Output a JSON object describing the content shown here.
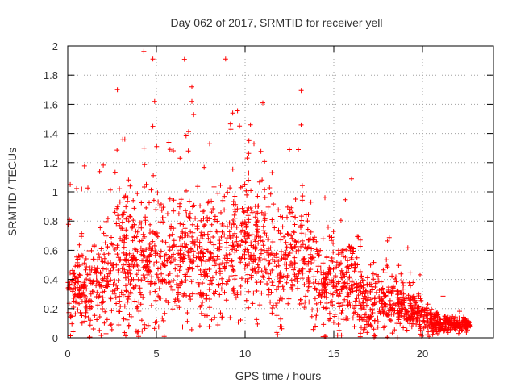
{
  "chart_data": {
    "type": "scatter",
    "title": "Day 062 of 2017, SRMTID for receiver yell",
    "xlabel": "GPS time / hours",
    "ylabel": "SRMTID / TECUs",
    "xlim": [
      0,
      24
    ],
    "ylim": [
      0,
      2
    ],
    "x_ticks": [
      0,
      5,
      10,
      15,
      20
    ],
    "x_tick_labels": [
      "0",
      "5",
      "10",
      "15",
      "20"
    ],
    "y_ticks": [
      0,
      0.2,
      0.4,
      0.6,
      0.8,
      1,
      1.2,
      1.4,
      1.6,
      1.8,
      2
    ],
    "y_tick_labels": [
      "0",
      "0.2",
      "0.4",
      "0.6",
      "0.8",
      "1",
      "1.2",
      "1.4",
      "1.6",
      "1.8",
      "2"
    ],
    "grid": true,
    "marker": "+",
    "color": "#ff0000",
    "outliers": [
      {
        "x": 2.8,
        "y": 1.7
      },
      {
        "x": 4.8,
        "y": 1.91
      },
      {
        "x": 4.9,
        "y": 1.62
      },
      {
        "x": 4.8,
        "y": 1.45
      },
      {
        "x": 7.0,
        "y": 1.72
      },
      {
        "x": 7.0,
        "y": 1.62
      },
      {
        "x": 7.1,
        "y": 1.53
      },
      {
        "x": 8.9,
        "y": 1.91
      },
      {
        "x": 11.0,
        "y": 1.61
      },
      {
        "x": 9.3,
        "y": 1.54
      },
      {
        "x": 10.3,
        "y": 1.46
      },
      {
        "x": 9.2,
        "y": 1.43
      },
      {
        "x": 3.1,
        "y": 1.36
      },
      {
        "x": 5.7,
        "y": 1.34
      },
      {
        "x": 12.5,
        "y": 1.29
      },
      {
        "x": 13.0,
        "y": 1.29
      },
      {
        "x": 8.0,
        "y": 1.33
      },
      {
        "x": 10.5,
        "y": 1.33
      },
      {
        "x": 1.8,
        "y": 1.14
      },
      {
        "x": 16.0,
        "y": 1.09
      },
      {
        "x": 14.5,
        "y": 0.96
      },
      {
        "x": 4.3,
        "y": 1.3
      },
      {
        "x": 6.8,
        "y": 1.28
      }
    ],
    "envelope": [
      {
        "x": 0.0,
        "center": 0.33,
        "spread": 0.16
      },
      {
        "x": 1.0,
        "center": 0.33,
        "spread": 0.18
      },
      {
        "x": 2.0,
        "center": 0.38,
        "spread": 0.24
      },
      {
        "x": 3.0,
        "center": 0.58,
        "spread": 0.32
      },
      {
        "x": 4.0,
        "center": 0.45,
        "spread": 0.3
      },
      {
        "x": 5.0,
        "center": 0.52,
        "spread": 0.34
      },
      {
        "x": 6.0,
        "center": 0.48,
        "spread": 0.3
      },
      {
        "x": 7.0,
        "center": 0.56,
        "spread": 0.32
      },
      {
        "x": 8.0,
        "center": 0.52,
        "spread": 0.3
      },
      {
        "x": 9.0,
        "center": 0.55,
        "spread": 0.3
      },
      {
        "x": 10.0,
        "center": 0.62,
        "spread": 0.3
      },
      {
        "x": 11.0,
        "center": 0.6,
        "spread": 0.28
      },
      {
        "x": 12.0,
        "center": 0.45,
        "spread": 0.24
      },
      {
        "x": 13.0,
        "center": 0.6,
        "spread": 0.28
      },
      {
        "x": 14.0,
        "center": 0.4,
        "spread": 0.2
      },
      {
        "x": 15.0,
        "center": 0.33,
        "spread": 0.18
      },
      {
        "x": 16.0,
        "center": 0.4,
        "spread": 0.22
      },
      {
        "x": 17.0,
        "center": 0.22,
        "spread": 0.15
      },
      {
        "x": 18.0,
        "center": 0.25,
        "spread": 0.14
      },
      {
        "x": 19.0,
        "center": 0.22,
        "spread": 0.11
      },
      {
        "x": 20.0,
        "center": 0.15,
        "spread": 0.08
      },
      {
        "x": 21.0,
        "center": 0.09,
        "spread": 0.04
      },
      {
        "x": 22.0,
        "center": 0.09,
        "spread": 0.03
      },
      {
        "x": 22.7,
        "center": 0.09,
        "spread": 0.03
      }
    ],
    "point_count": 2200
  }
}
